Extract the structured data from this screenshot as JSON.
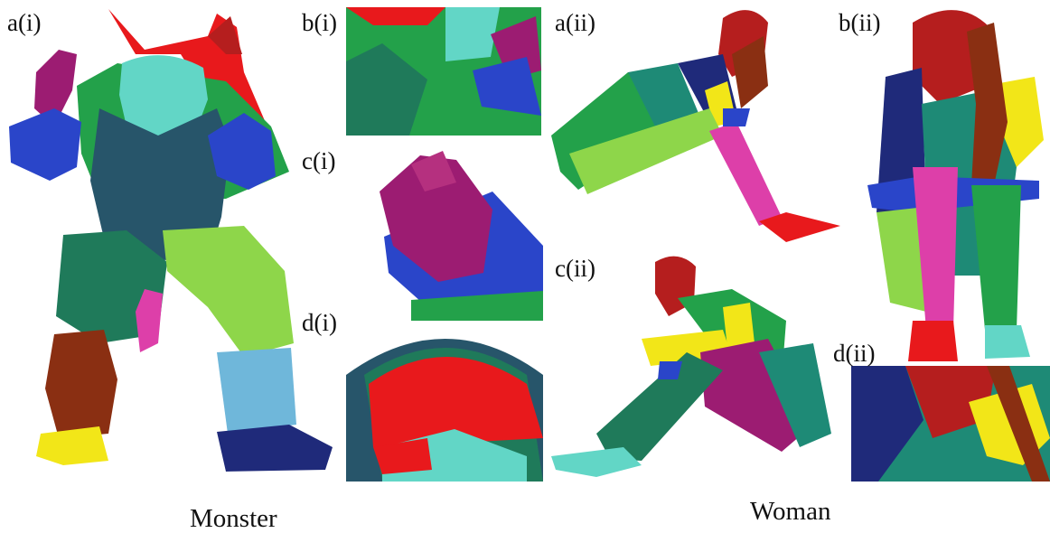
{
  "figure": {
    "labels": {
      "a_i": "a(i)",
      "b_i": "b(i)",
      "c_i": "c(i)",
      "d_i": "d(i)",
      "a_ii": "a(ii)",
      "b_ii": "b(ii)",
      "c_ii": "c(ii)",
      "d_ii": "d(ii)"
    },
    "captions": {
      "left": "Monster",
      "right": "Woman"
    }
  },
  "segment_colors": {
    "red": "#e8191c",
    "dark_red": "#b51e1e",
    "brown": "#8a2f12",
    "green": "#23a14a",
    "dark_teal_green": "#1f7a5a",
    "teal": "#1e8a76",
    "light_green": "#8ed64a",
    "dark_slate": "#27556a",
    "cyan": "#62d6c6",
    "navy": "#1f2a7a",
    "blue": "#2a45c9",
    "purple": "#9c1c72",
    "magenta": "#dd3fa9",
    "yellow": "#f2e618",
    "light_blue": "#6fb7da"
  }
}
